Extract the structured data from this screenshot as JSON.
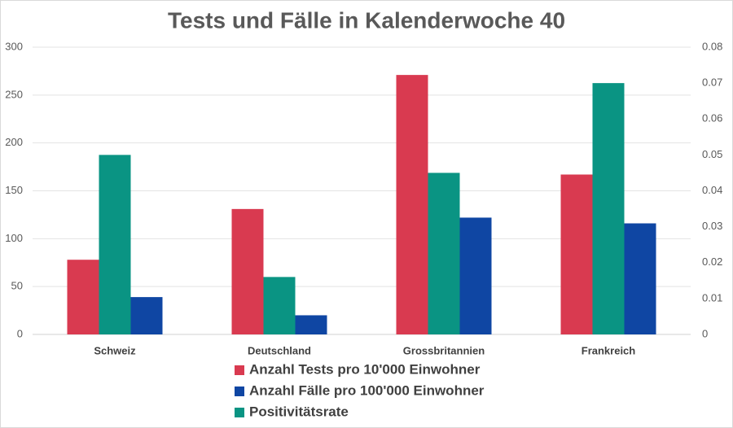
{
  "chart_data": {
    "type": "bar",
    "title": "Tests und Fälle in Kalenderwoche 40",
    "categories": [
      "Schweiz",
      "Deutschland",
      "Grossbritannien",
      "Frankreich"
    ],
    "series": [
      {
        "name": "Anzahl Tests pro 10'000 Einwohner",
        "color": "#d93a50",
        "values": [
          78,
          131,
          271,
          167
        ]
      },
      {
        "name": "Anzahl Fälle pro 100'000 Einwohner",
        "color": "#0f46a3",
        "values": [
          39,
          20,
          122,
          116
        ]
      },
      {
        "name": "Positivitätsrate",
        "color": "#0a9483",
        "axis": "y2",
        "values": [
          0.05,
          0.016,
          0.045,
          0.07
        ]
      }
    ],
    "ylim": [
      0,
      300
    ],
    "yticks": [
      0,
      50,
      100,
      150,
      200,
      250,
      300
    ],
    "y2lim": [
      0,
      0.08
    ],
    "y2ticks": [
      0,
      0.01,
      0.02,
      0.03,
      0.04,
      0.05,
      0.06,
      0.07,
      0.08
    ],
    "grid": true
  }
}
